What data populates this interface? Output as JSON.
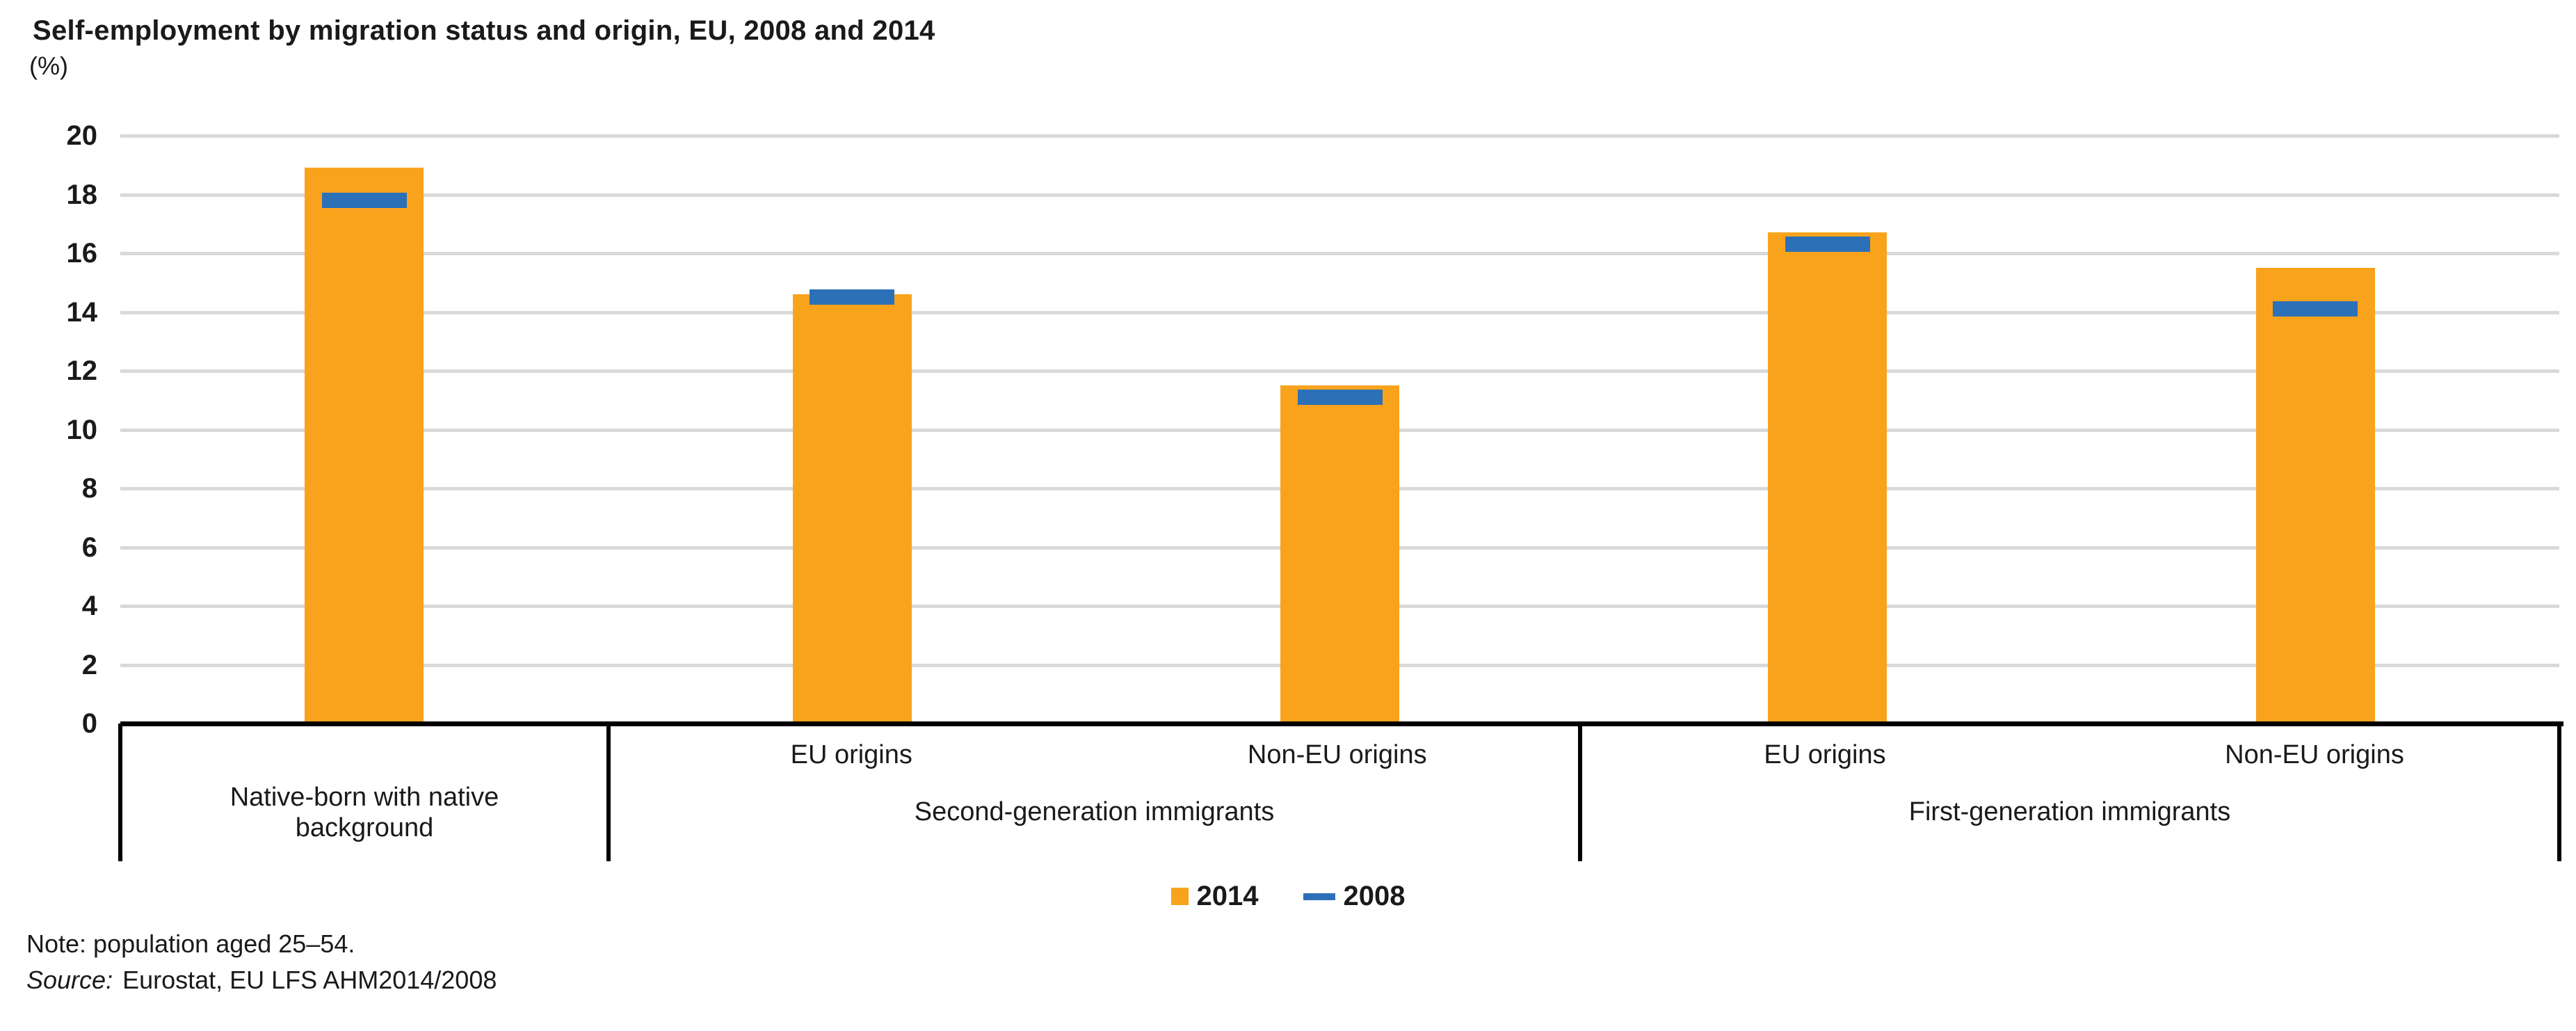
{
  "header": {
    "title": "Self-employment by migration status and origin, EU, 2008 and 2014",
    "unit_label": "(%)"
  },
  "legend": {
    "items": [
      {
        "label": "2014",
        "swatch": "square",
        "color": "#F9A31D"
      },
      {
        "label": "2008",
        "swatch": "dash",
        "color": "#2C70B8"
      }
    ]
  },
  "footnotes": {
    "note": "Note: population aged 25–54.",
    "source_label": "Source:",
    "source_text": "Eurostat, EU LFS AHM2014/2008"
  },
  "chart_data": {
    "type": "bar",
    "title": "Self-employment by migration status and origin, EU, 2008 and 2014",
    "ylabel": "(%)",
    "xlabel": "",
    "ylim": [
      0,
      20
    ],
    "yticks": [
      0,
      2,
      4,
      6,
      8,
      10,
      12,
      14,
      16,
      18,
      20
    ],
    "grid": true,
    "legend_position": "bottom",
    "colors": {
      "2014": "#F9A31D",
      "2008": "#2C70B8",
      "gridline": "#D9D9D9",
      "axis": "#000000"
    },
    "groups": [
      {
        "label": "Native-born with native background",
        "slots": [
          ""
        ]
      },
      {
        "label": "Second-generation immigrants",
        "slots": [
          "EU origins",
          "Non-EU origins"
        ]
      },
      {
        "label": "First-generation immigrants",
        "slots": [
          "EU origins",
          "Non-EU origins"
        ]
      }
    ],
    "categories": [
      "Native-born with native background",
      "Second-generation immigrants — EU origins",
      "Second-generation immigrants — Non-EU origins",
      "First-generation immigrants — EU origins",
      "First-generation immigrants — Non-EU origins"
    ],
    "series": [
      {
        "name": "2014",
        "style": "bar",
        "values": [
          18.9,
          14.6,
          11.5,
          16.7,
          15.5
        ]
      },
      {
        "name": "2008",
        "style": "dash-marker",
        "values": [
          17.8,
          14.5,
          11.1,
          16.3,
          14.1
        ]
      }
    ]
  }
}
